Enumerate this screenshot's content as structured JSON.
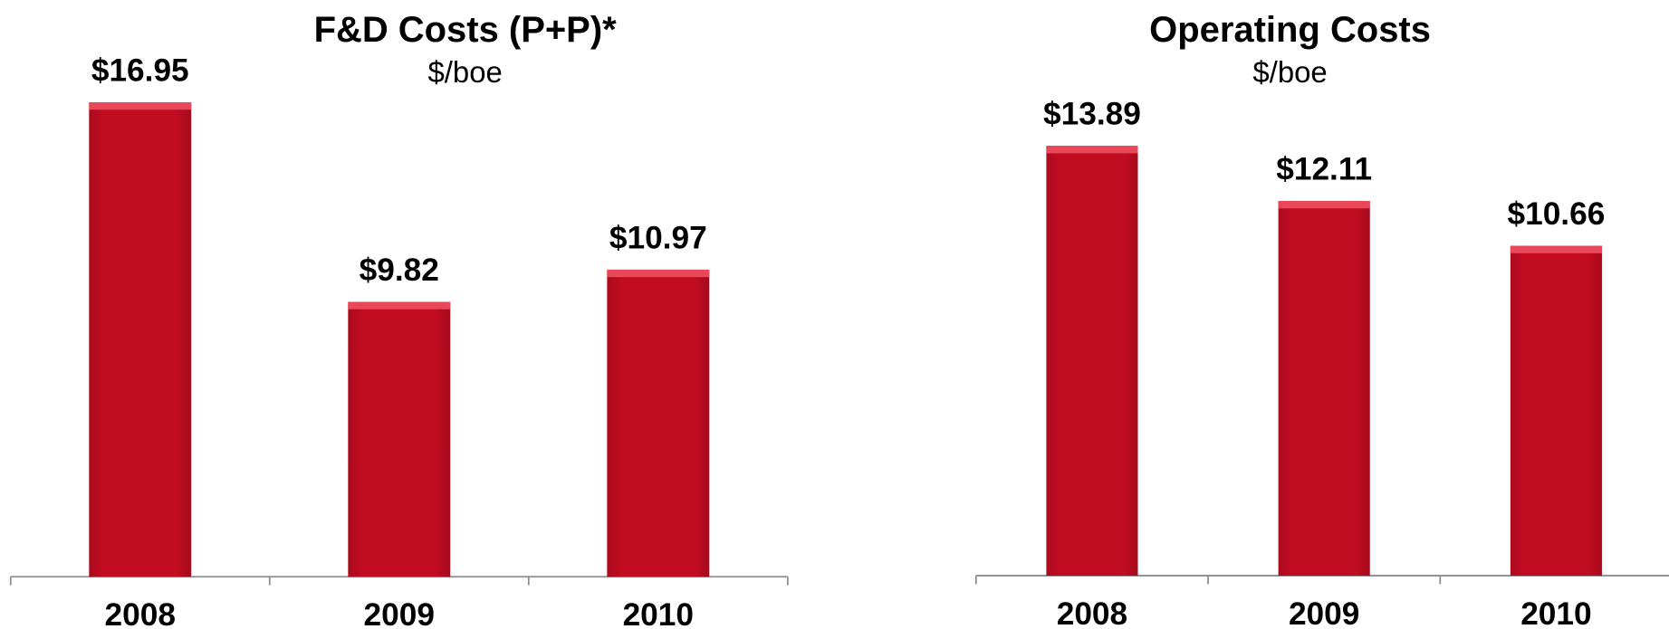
{
  "chart_data": [
    {
      "type": "bar",
      "title": "F&D Costs (P+P)*",
      "subtitle": "$/boe",
      "categories": [
        "2008",
        "2009",
        "2010"
      ],
      "values": [
        16.95,
        9.82,
        10.97
      ],
      "value_labels": [
        "$16.95",
        "$9.82",
        "$10.97"
      ],
      "color": "#c20c22"
    },
    {
      "type": "bar",
      "title": "Operating Costs",
      "subtitle": "$/boe",
      "categories": [
        "2008",
        "2009",
        "2010"
      ],
      "values": [
        13.89,
        12.11,
        10.66
      ],
      "value_labels": [
        "$13.89",
        "$12.11",
        "$10.66"
      ],
      "color": "#c20c22"
    }
  ]
}
